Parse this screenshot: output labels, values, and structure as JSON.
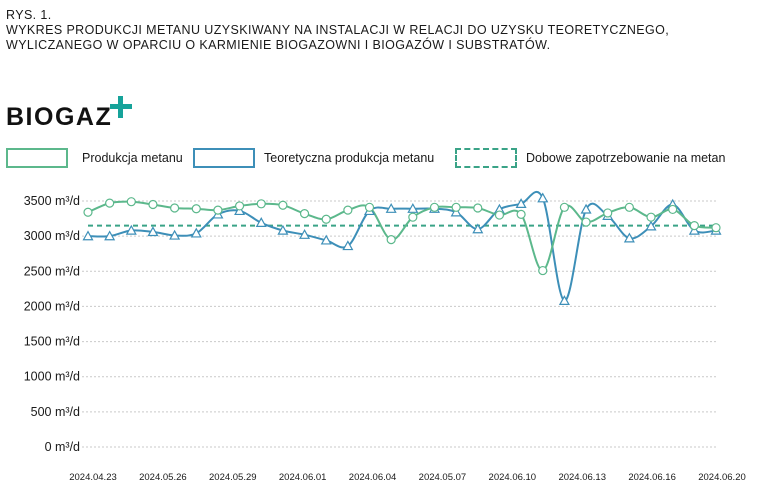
{
  "caption": {
    "number": "RYS. 1.",
    "text": "WYKRES PRODUKCJI METANU UZYSKIWANY NA INSTALACJI W RELACJI DO UZYSKU TEORETYCZNEGO, WYLICZANEGO W OPARCIU O KARMIENIE BIOGAZOWNI I BIOGAZÓW I SUBSTRATÓW."
  },
  "logo": {
    "text": "BIOGAZ",
    "icon": "plus-icon",
    "accent": "#16a39a"
  },
  "colors": {
    "green": "#5cb88c",
    "blue": "#3d8fb8",
    "dashed": "#3aa387",
    "grid": "#c9c9c9"
  },
  "chart_data": {
    "type": "line",
    "legend": [
      {
        "name": "Produkcja metanu",
        "style": "solid",
        "color": "#5cb88c"
      },
      {
        "name": "Teoretyczna produkcja metanu",
        "style": "solid",
        "color": "#3d8fb8"
      },
      {
        "name": "Dobowe zapotrzebowanie na metan",
        "style": "dashed",
        "color": "#3aa387"
      }
    ],
    "legend_position": "top",
    "grid": true,
    "y_unit": "m³/d",
    "ylim": [
      0,
      3500
    ],
    "y_ticks": [
      3500,
      3000,
      2500,
      2000,
      1500,
      1000,
      500,
      0
    ],
    "y_tick_labels": [
      "3500 m³/d",
      "3000 m³/d",
      "2500 m³/d",
      "2000 m³/d",
      "1500 m³/d",
      "1000 m³/d",
      "500 m³/d",
      "0 m³/d"
    ],
    "x_tick_labels": [
      "2024.04.23",
      "2024.05.26",
      "2024.05.29",
      "2024.06.01",
      "2024.06.04",
      "2024.05.07",
      "2024.06.10",
      "2024.06.13",
      "2024.06.16",
      "2024.06.20"
    ],
    "n_points": 30,
    "series": [
      {
        "name": "Produkcja metanu",
        "marker": "circle",
        "values": [
          3340,
          3470,
          3490,
          3450,
          3400,
          3390,
          3370,
          3430,
          3460,
          3440,
          3320,
          3240,
          3370,
          3410,
          2950,
          3270,
          3410,
          3410,
          3400,
          3300,
          3310,
          2510,
          3410,
          3200,
          3330,
          3410,
          3270,
          3380,
          3150,
          3120
        ]
      },
      {
        "name": "Teoretyczna produkcja metanu",
        "marker": "triangle",
        "values": [
          3000,
          3000,
          3080,
          3060,
          3010,
          3040,
          3310,
          3360,
          3190,
          3080,
          3020,
          2940,
          2860,
          3360,
          3390,
          3390,
          3390,
          3340,
          3100,
          3380,
          3460,
          3540,
          2080,
          3380,
          3290,
          2970,
          3140,
          3450,
          3080,
          3080
        ]
      },
      {
        "name": "Dobowe zapotrzebowanie na metan",
        "style": "dashed",
        "values": [
          3150,
          3150
        ]
      }
    ]
  }
}
